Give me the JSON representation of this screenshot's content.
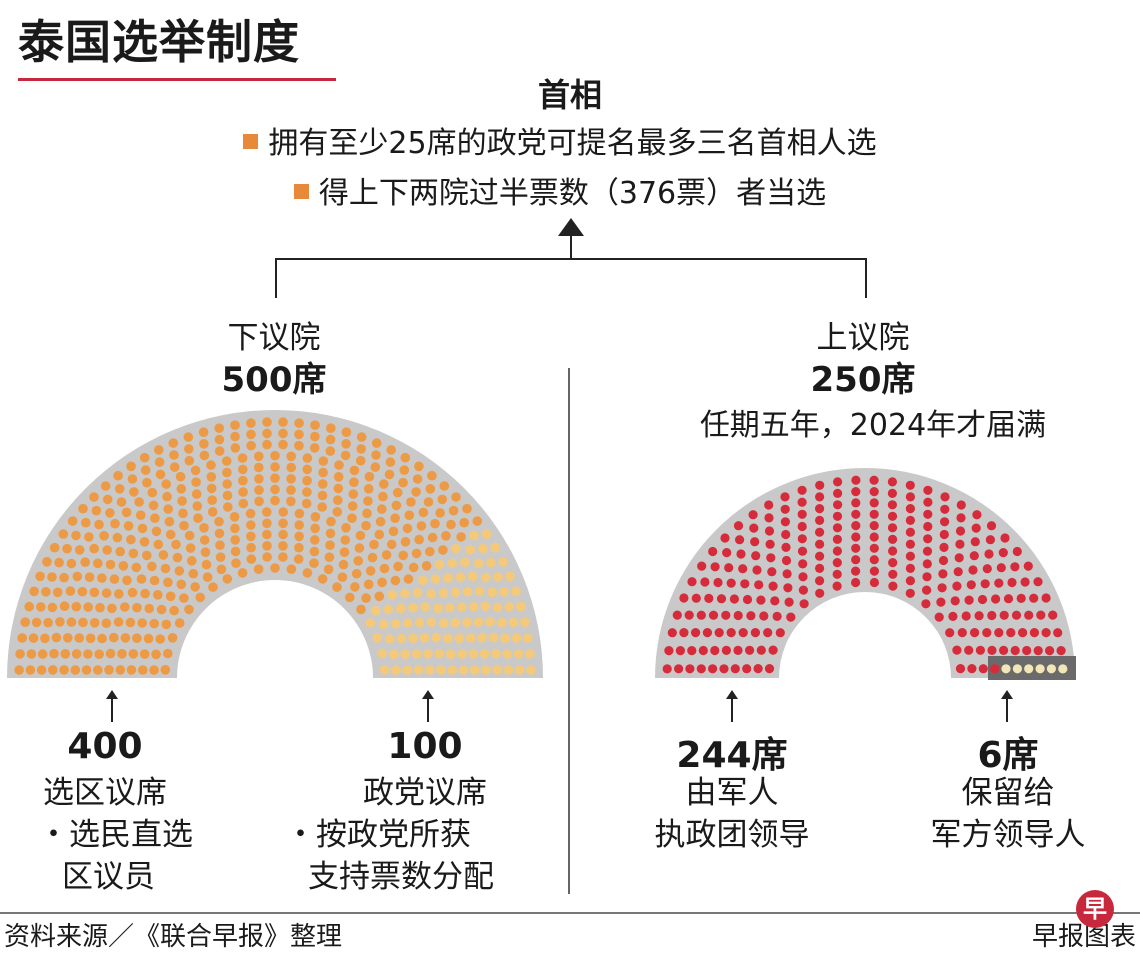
{
  "title": "泰国选举制度",
  "pm": {
    "title": "首相",
    "rules": [
      "拥有至少25席的政党可提名最多三名首相人选",
      "得上下两院过半票数（376票）者当选"
    ]
  },
  "lower_house": {
    "name": "下议院",
    "seats_label": "500席",
    "groups": [
      {
        "value": "400",
        "label": "选区议席",
        "note_lines": [
          "・选民直选",
          "区议员"
        ]
      },
      {
        "value": "100",
        "label": "政党议席",
        "note_lines": [
          "・按政党所获",
          "支持票数分配"
        ]
      }
    ]
  },
  "upper_house": {
    "name": "上议院",
    "seats_label": "250席",
    "term": "任期五年，2024年才届满",
    "groups": [
      {
        "value": "244席",
        "label_lines": [
          "由军人",
          "执政团领导"
        ]
      },
      {
        "value": "6席",
        "label_lines": [
          "保留给",
          "军方领导人"
        ]
      }
    ]
  },
  "colors": {
    "bullet": "#e8893a",
    "lower_constituency": "#ec9a45",
    "lower_party": "#f4c97a",
    "upper_junta": "#d52b3a",
    "upper_reserved": "#f0e6b8",
    "arc_gray": "#c9c9c9",
    "reserved_box": "#6a6a6a",
    "accent_rule": "#c8283c"
  },
  "footer": {
    "source": "资料来源／《联合早报》整理",
    "credit": "早报图表",
    "logo_char": "早"
  },
  "chart_data": {
    "type": "parliament",
    "chambers": [
      {
        "name": "下议院",
        "total": 500,
        "segments": [
          {
            "label": "选区议席",
            "value": 400
          },
          {
            "label": "政党议席",
            "value": 100
          }
        ]
      },
      {
        "name": "上议院",
        "total": 250,
        "segments": [
          {
            "label": "由军人执政团领导",
            "value": 244
          },
          {
            "label": "保留给军方领导人",
            "value": 6
          }
        ]
      }
    ]
  }
}
